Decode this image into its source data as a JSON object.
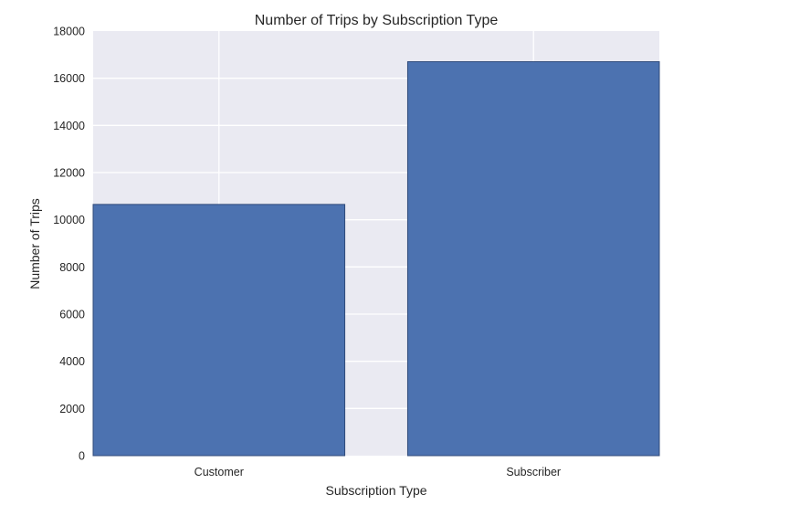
{
  "chart_data": {
    "type": "bar",
    "title": "Number of Trips by Subscription Type",
    "xlabel": "Subscription Type",
    "ylabel": "Number of Trips",
    "categories": [
      "Customer",
      "Subscriber"
    ],
    "values": [
      10650,
      16700
    ],
    "ylim": [
      0,
      18000
    ],
    "yticks": [
      "0",
      "2000",
      "4000",
      "6000",
      "8000",
      "10000",
      "12000",
      "14000",
      "16000",
      "18000"
    ],
    "grid": true,
    "legend": "none",
    "colors": {
      "bar": "#4c72b0",
      "plot_background": "#eaeaf2",
      "grid": "#ffffff"
    }
  }
}
